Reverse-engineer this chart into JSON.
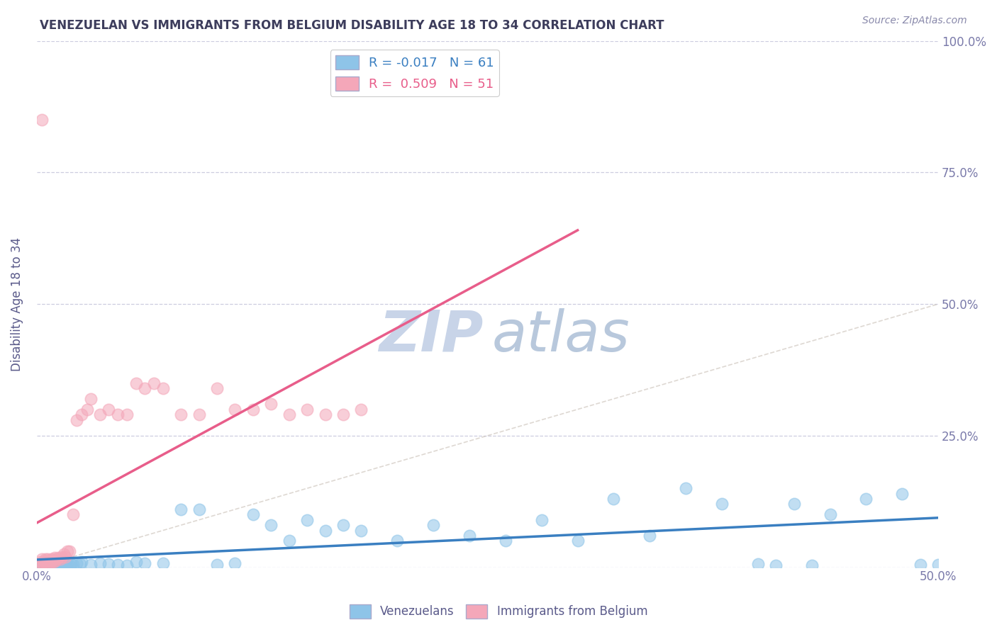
{
  "title": "VENEZUELAN VS IMMIGRANTS FROM BELGIUM DISABILITY AGE 18 TO 34 CORRELATION CHART",
  "source": "Source: ZipAtlas.com",
  "ylabel": "Disability Age 18 to 34",
  "xlim": [
    0.0,
    0.5
  ],
  "ylim": [
    0.0,
    1.0
  ],
  "xticks": [
    0.0,
    0.1,
    0.2,
    0.3,
    0.4,
    0.5
  ],
  "xtick_labels": [
    "0.0%",
    "",
    "",
    "",
    "",
    "50.0%"
  ],
  "yticks": [
    0.0,
    0.25,
    0.5,
    0.75,
    1.0
  ],
  "ytick_labels": [
    "",
    "25.0%",
    "50.0%",
    "75.0%",
    "100.0%"
  ],
  "venezuelan_R": -0.017,
  "venezuelan_N": 61,
  "belgium_R": 0.509,
  "belgium_N": 51,
  "blue_color": "#8ec4e8",
  "pink_color": "#f4a7b9",
  "blue_line_color": "#3a7fc1",
  "pink_line_color": "#e85d8a",
  "title_color": "#3d3d5c",
  "axis_label_color": "#5a5a8a",
  "tick_color": "#7a7aaa",
  "grid_color": "#c8c8dc",
  "source_color": "#8888aa",
  "watermark_zip_color": "#c8d4e8",
  "watermark_atlas_color": "#b8c8dc",
  "venezuelan_x": [
    0.001,
    0.002,
    0.003,
    0.004,
    0.005,
    0.006,
    0.007,
    0.008,
    0.009,
    0.01,
    0.011,
    0.012,
    0.013,
    0.014,
    0.015,
    0.016,
    0.017,
    0.018,
    0.019,
    0.02,
    0.022,
    0.024,
    0.025,
    0.03,
    0.035,
    0.04,
    0.045,
    0.05,
    0.055,
    0.06,
    0.07,
    0.08,
    0.09,
    0.1,
    0.11,
    0.12,
    0.13,
    0.14,
    0.15,
    0.16,
    0.17,
    0.18,
    0.2,
    0.22,
    0.24,
    0.26,
    0.28,
    0.3,
    0.32,
    0.34,
    0.36,
    0.38,
    0.4,
    0.42,
    0.44,
    0.46,
    0.48,
    0.5,
    0.43,
    0.49,
    0.41
  ],
  "venezuelan_y": [
    0.005,
    0.008,
    0.003,
    0.01,
    0.005,
    0.008,
    0.004,
    0.006,
    0.007,
    0.005,
    0.004,
    0.006,
    0.005,
    0.007,
    0.006,
    0.004,
    0.005,
    0.003,
    0.006,
    0.005,
    0.008,
    0.006,
    0.01,
    0.005,
    0.008,
    0.006,
    0.005,
    0.004,
    0.01,
    0.008,
    0.007,
    0.11,
    0.11,
    0.005,
    0.008,
    0.1,
    0.08,
    0.05,
    0.09,
    0.07,
    0.08,
    0.07,
    0.05,
    0.08,
    0.06,
    0.05,
    0.09,
    0.05,
    0.13,
    0.06,
    0.15,
    0.12,
    0.006,
    0.12,
    0.1,
    0.13,
    0.14,
    0.005,
    0.004,
    0.005,
    0.003
  ],
  "belgium_x": [
    0.001,
    0.002,
    0.003,
    0.003,
    0.004,
    0.004,
    0.005,
    0.005,
    0.006,
    0.006,
    0.007,
    0.007,
    0.008,
    0.008,
    0.009,
    0.009,
    0.01,
    0.01,
    0.011,
    0.012,
    0.013,
    0.014,
    0.015,
    0.016,
    0.017,
    0.018,
    0.02,
    0.022,
    0.025,
    0.028,
    0.03,
    0.035,
    0.04,
    0.045,
    0.05,
    0.055,
    0.06,
    0.065,
    0.07,
    0.08,
    0.09,
    0.1,
    0.11,
    0.12,
    0.13,
    0.14,
    0.15,
    0.16,
    0.17,
    0.18,
    0.003
  ],
  "belgium_y": [
    0.005,
    0.01,
    0.008,
    0.015,
    0.01,
    0.012,
    0.01,
    0.015,
    0.012,
    0.015,
    0.008,
    0.012,
    0.01,
    0.015,
    0.01,
    0.015,
    0.012,
    0.018,
    0.015,
    0.018,
    0.015,
    0.02,
    0.025,
    0.02,
    0.03,
    0.03,
    0.1,
    0.28,
    0.29,
    0.3,
    0.32,
    0.29,
    0.3,
    0.29,
    0.29,
    0.35,
    0.34,
    0.35,
    0.34,
    0.29,
    0.29,
    0.34,
    0.3,
    0.3,
    0.31,
    0.29,
    0.3,
    0.29,
    0.29,
    0.3,
    0.85
  ]
}
